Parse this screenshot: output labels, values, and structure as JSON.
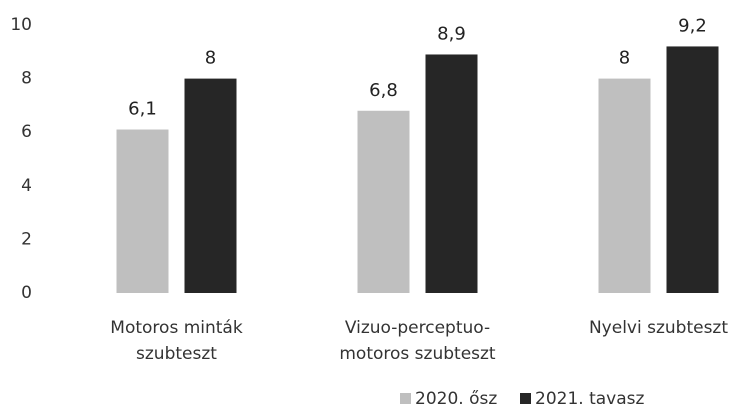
{
  "chart_data": {
    "type": "bar",
    "categories": [
      "Motoros minták szubteszt",
      "Vizuo-perceptuo-motoros szubteszt",
      "Nyelvi szubteszt"
    ],
    "series": [
      {
        "name": "2020. ősz",
        "color": "#bfbfbf",
        "values": [
          6.1,
          6.8,
          8
        ],
        "value_labels": [
          "6,1",
          "6,8",
          "8"
        ]
      },
      {
        "name": "2021. tavasz",
        "color": "#262626",
        "values": [
          8,
          8.9,
          9.2
        ],
        "value_labels": [
          "8",
          "8,9",
          "9,2"
        ]
      }
    ],
    "ylim": [
      0,
      10
    ],
    "yticks": [
      0,
      2,
      4,
      6,
      8,
      10
    ],
    "grid": false,
    "legend": "bottom"
  }
}
